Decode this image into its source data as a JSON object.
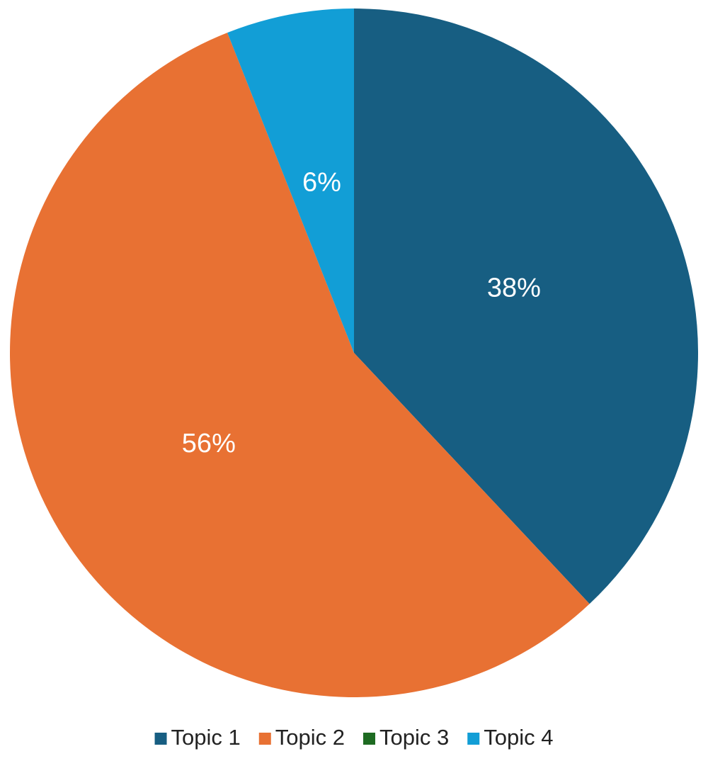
{
  "chart_data": {
    "type": "pie",
    "categories": [
      "Topic 1",
      "Topic 2",
      "Topic 3",
      "Topic 4"
    ],
    "values": [
      38,
      56,
      0,
      6
    ],
    "value_labels": [
      "38%",
      "56%",
      null,
      "6%"
    ],
    "colors": [
      "#175e82",
      "#e87133",
      "#1e6b22",
      "#129ed6"
    ],
    "legend": "bottom"
  }
}
